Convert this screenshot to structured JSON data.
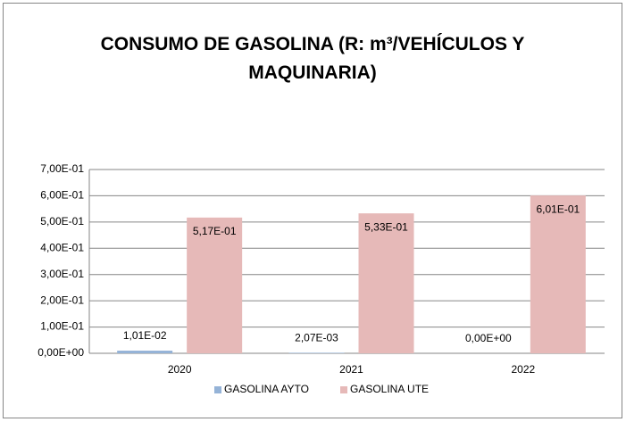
{
  "chart_data": {
    "type": "bar",
    "title": "CONSUMO DE GASOLINA (R: m³/VEHÍCULOS Y MAQUINARIA)",
    "categories": [
      "2020",
      "2021",
      "2022"
    ],
    "series": [
      {
        "name": "GASOLINA AYTO",
        "color": "#95b3d7",
        "values": [
          0.0101,
          0.00207,
          0
        ],
        "value_labels": [
          "1,01E-02",
          "2,07E-03",
          "0,00E+00"
        ]
      },
      {
        "name": "GASOLINA UTE",
        "color": "#e6b9b8",
        "values": [
          0.517,
          0.533,
          0.601
        ],
        "value_labels": [
          "5,17E-01",
          "5,33E-01",
          "6,01E-01"
        ]
      }
    ],
    "ylim": [
      0,
      0.7
    ],
    "yticks": [
      {
        "value": 0,
        "label": "0,00E+00"
      },
      {
        "value": 0.1,
        "label": "1,00E-01"
      },
      {
        "value": 0.2,
        "label": "2,00E-01"
      },
      {
        "value": 0.3,
        "label": "3,00E-01"
      },
      {
        "value": 0.4,
        "label": "4,00E-01"
      },
      {
        "value": 0.5,
        "label": "5,00E-01"
      },
      {
        "value": 0.6,
        "label": "6,00E-01"
      },
      {
        "value": 0.7,
        "label": "7,00E-01"
      }
    ],
    "grid": true,
    "legend": "bottom"
  }
}
